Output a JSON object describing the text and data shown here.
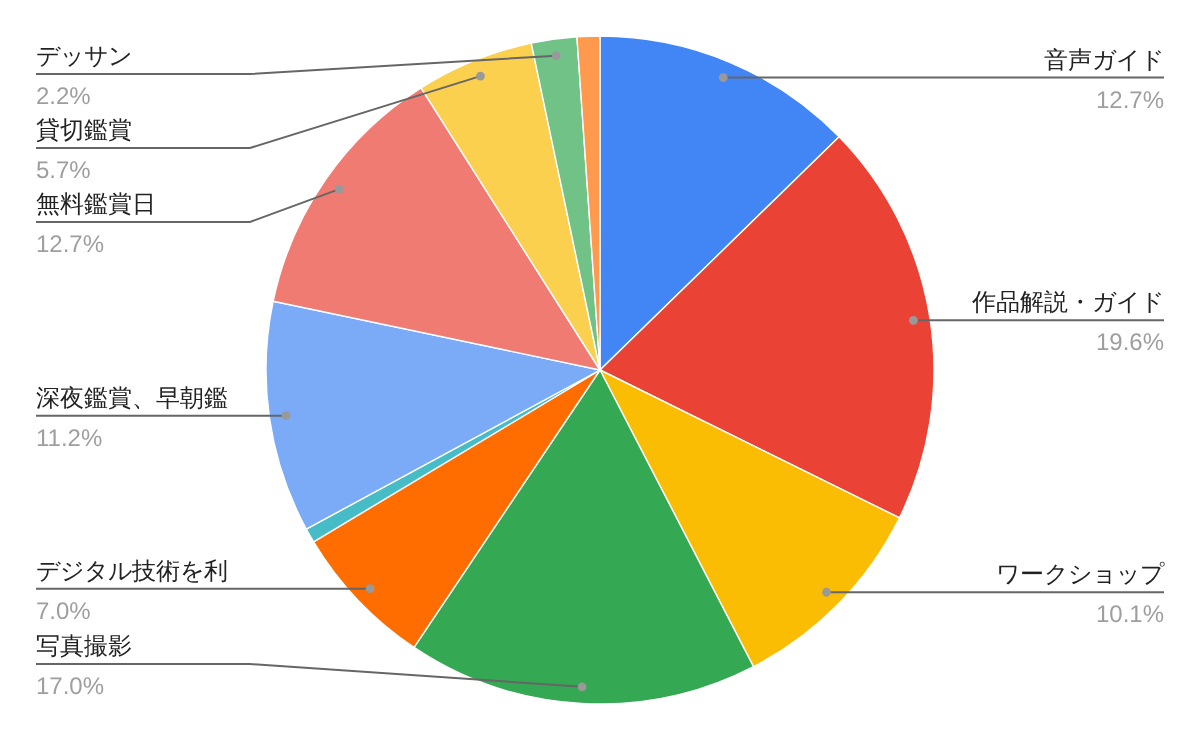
{
  "chart_data": {
    "type": "pie",
    "categories": [
      "音声ガイド",
      "作品解説・ガイド",
      "ワークショップ",
      "写真撮影",
      "デジタル技術を利",
      null,
      "深夜鑑賞、早朝鑑",
      "無料鑑賞日",
      "貸切鑑賞",
      "デッサン",
      null
    ],
    "values": [
      12.7,
      19.6,
      10.1,
      17.0,
      7.0,
      0.7,
      11.2,
      12.7,
      5.7,
      2.2,
      1.1
    ],
    "colors": [
      "#4285f4",
      "#ea4335",
      "#fbbc04",
      "#34a853",
      "#ff6d01",
      "#46bdc6",
      "#7baaf7",
      "#f07b72",
      "#fcd04f",
      "#71c287",
      "#ff994d"
    ],
    "value_labels": [
      "12.7%",
      "19.6%",
      "10.1%",
      "17.0%",
      "7.0%",
      null,
      "11.2%",
      "12.7%",
      "5.7%",
      "2.2%",
      null
    ]
  }
}
